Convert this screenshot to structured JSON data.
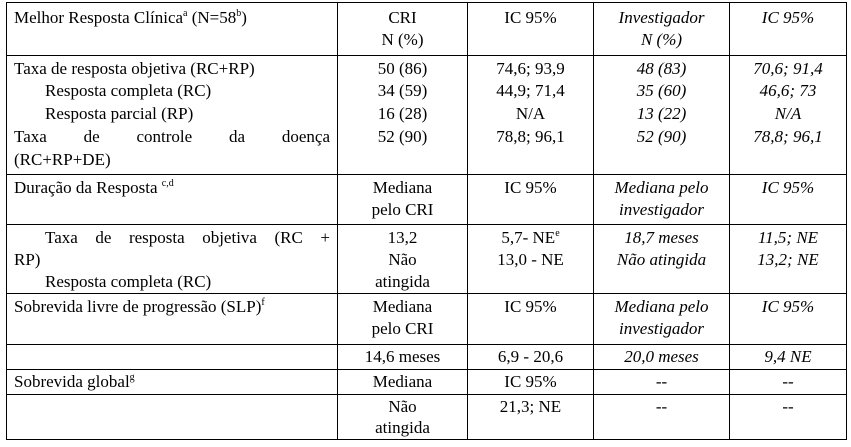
{
  "header": {
    "title": "Melhor Resposta Clínica",
    "title_sup": "a",
    "n_label": "(N=58",
    "n_sup": "b",
    "n_close": ")",
    "cri": "CRI",
    "cri_n": "N (%)",
    "ic": "IC 95%",
    "inv": "Investigador",
    "inv_n": "N (%)",
    "ic_inv": "IC 95%"
  },
  "response_rows": [
    {
      "label": "Taxa de resposta objetiva (RC+RP)",
      "cri": "50 (86)",
      "ic": "74,6; 93,9",
      "inv": "48 (83)",
      "ic_inv": "70,6; 91,4"
    },
    {
      "label": "Resposta completa (RC)",
      "cri": "34 (59)",
      "ic": "44,9; 71,4",
      "inv": "35 (60)",
      "ic_inv": "46,6; 73"
    },
    {
      "label": "Resposta parcial (RP)",
      "cri": "16 (28)",
      "ic": "N/A",
      "inv": "13 (22)",
      "ic_inv": "N/A"
    },
    {
      "label_line1": "Taxa de controle da doença",
      "label_line2": "(RC+RP+DE)",
      "cri": "52 (90)",
      "ic": "78,8; 96,1",
      "inv": "52 (90)",
      "ic_inv": "78,8; 96,1"
    }
  ],
  "duration": {
    "label": "Duração da Resposta",
    "label_sup": "c,d",
    "cri_line1": "Mediana",
    "cri_line2": "pelo CRI",
    "ic": "IC 95%",
    "inv_line1": "Mediana pelo",
    "inv_line2": "investigador",
    "ic_inv": "IC 95%",
    "orr_label_line1": "Taxa de resposta objetiva (RC +",
    "orr_label_line2": "RP)",
    "cr_label": "Resposta completa (RC)",
    "orr_cri": "13,2",
    "cr_cri_line1": "Não",
    "cr_cri_line2": "atingida",
    "orr_ic": "5,7- NE",
    "orr_ic_sup": "e",
    "cr_ic": "13,0 - NE",
    "orr_inv": "18,7 meses",
    "cr_inv": "Não atingida",
    "orr_ic_inv": "11,5; NE",
    "cr_ic_inv": "13,2; NE"
  },
  "pfs": {
    "label": "Sobrevida livre de progressão (SLP)",
    "label_sup": "f",
    "cri_line1": "Mediana",
    "cri_line2": "pelo CRI",
    "ic": "IC 95%",
    "inv_line1": "Mediana pelo",
    "inv_line2": "investigador",
    "ic_inv": "IC 95%",
    "cri_val": "14,6 meses",
    "ic_val": "6,9 - 20,6",
    "inv_val": "20,0 meses",
    "ic_inv_val": "9,4 NE"
  },
  "os": {
    "label": "Sobrevida global",
    "label_sup": "g",
    "cri": "Mediana",
    "ic": "IC 95%",
    "inv": "--",
    "ic_inv": "--",
    "cri_val_line1": "Não",
    "cri_val_line2": "atingida",
    "ic_val": "21,3; NE",
    "inv_val": "--",
    "ic_inv_val": "--"
  }
}
